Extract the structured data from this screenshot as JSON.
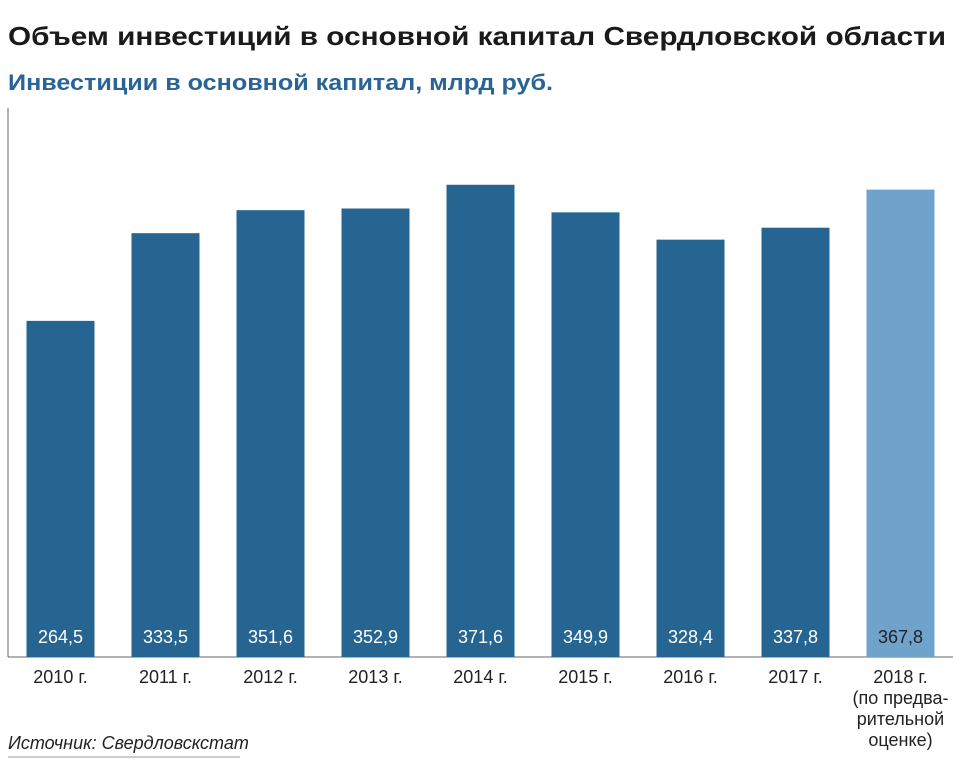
{
  "chart_data": {
    "type": "bar",
    "title": "Объем инвестиций в основной капитал Свердловской области",
    "subtitle": "Инвестиции в основной капитал, млрд руб.",
    "source": "Источник: Свердловскстат",
    "categories": [
      "2010 г.",
      "2011 г.",
      "2012 г.",
      "2013 г.",
      "2014 г.",
      "2015 г.",
      "2016 г.",
      "2017 г.",
      "2018 г.\n(по предва-\nрительной\nоценке)"
    ],
    "values": [
      264.5,
      333.5,
      351.6,
      352.9,
      371.6,
      349.9,
      328.4,
      337.8,
      367.8
    ],
    "value_labels": [
      "264,5",
      "333,5",
      "351,6",
      "352,9",
      "371,6",
      "349,9",
      "328,4",
      "337,8",
      "367,8"
    ],
    "colors": [
      "#266592",
      "#266592",
      "#266592",
      "#266592",
      "#266592",
      "#266592",
      "#266592",
      "#266592",
      "#6fa3cb"
    ],
    "value_label_colors": [
      "#ffffff",
      "#ffffff",
      "#ffffff",
      "#ffffff",
      "#ffffff",
      "#ffffff",
      "#ffffff",
      "#ffffff",
      "#222222"
    ],
    "ylim": [
      0,
      432
    ]
  }
}
